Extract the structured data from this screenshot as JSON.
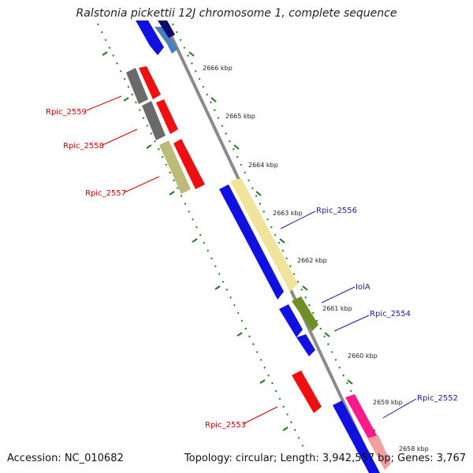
{
  "title": "Ralstonia pickettii 12J chromosome 1, complete sequence",
  "footer": {
    "accession": "Accession: NC_010682",
    "summary": "Topology: circular; Length: 3,942,557 bp; Genes: 3,767"
  },
  "colors": {
    "backbone": "#8a8a8a",
    "tick": "#1f7a1f",
    "forward_label": "#1a1aa8",
    "reverse_label": "#cc0000"
  },
  "scale_ticks": [
    {
      "label": "2666 kbp"
    },
    {
      "label": "2665 kbp"
    },
    {
      "label": "2664 kbp"
    },
    {
      "label": "2663 kbp"
    },
    {
      "label": "2662 kbp"
    },
    {
      "label": "2661 kbp"
    },
    {
      "label": "2660 kbp"
    },
    {
      "label": "2659 kbp"
    },
    {
      "label": "2658 kbp"
    }
  ],
  "gene_labels": [
    {
      "name": "Rpic_2559",
      "strand": "reverse"
    },
    {
      "name": "Rpic_2558",
      "strand": "reverse"
    },
    {
      "name": "Rpic_2557",
      "strand": "reverse"
    },
    {
      "name": "Rpic_2556",
      "strand": "forward"
    },
    {
      "name": "IolA",
      "strand": "forward"
    },
    {
      "name": "Rpic_2554",
      "strand": "forward"
    },
    {
      "name": "Rpic_2553",
      "strand": "reverse"
    },
    {
      "name": "Rpic_2552",
      "strand": "forward"
    }
  ]
}
